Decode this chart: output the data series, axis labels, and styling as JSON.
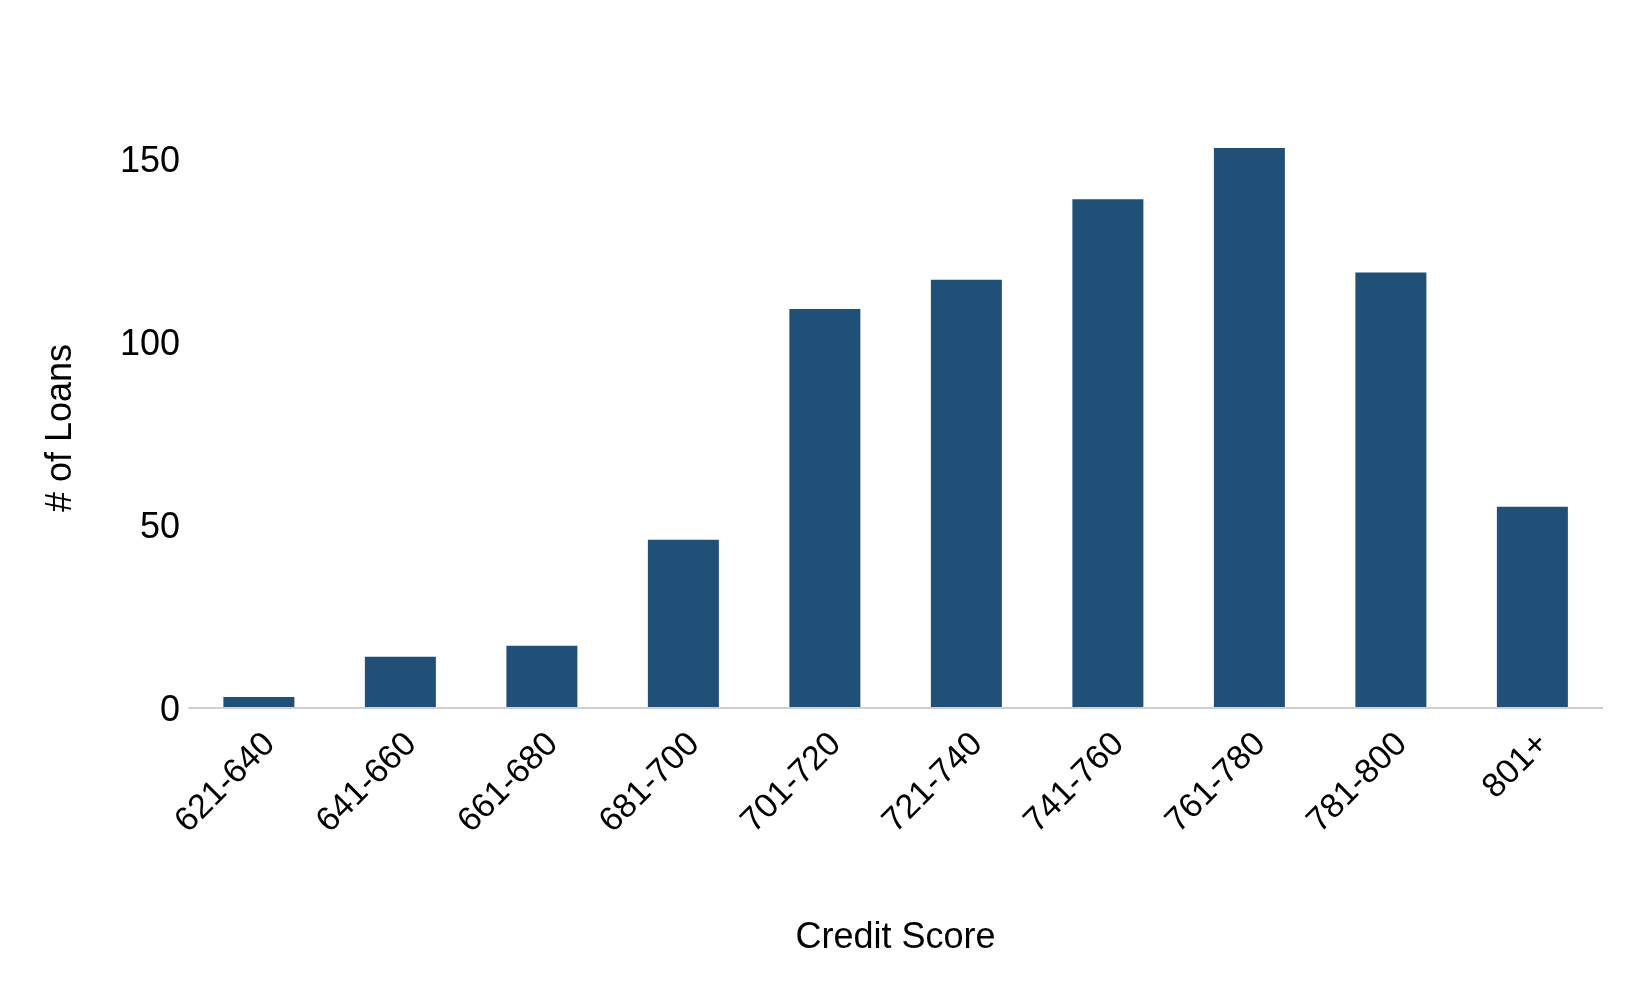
{
  "chart_data": {
    "type": "bar",
    "xlabel": "Credit Score",
    "ylabel": "# of Loans",
    "categories": [
      "621-640",
      "641-660",
      "661-680",
      "681-700",
      "701-720",
      "721-740",
      "741-760",
      "761-780",
      "781-800",
      "801+"
    ],
    "values": [
      3,
      14,
      17,
      46,
      109,
      117,
      139,
      153,
      119,
      55
    ],
    "color": "#204f77",
    "ylim": [
      0,
      153
    ],
    "yticks": [
      0,
      50,
      100,
      150
    ],
    "grid": false,
    "legend": false
  }
}
